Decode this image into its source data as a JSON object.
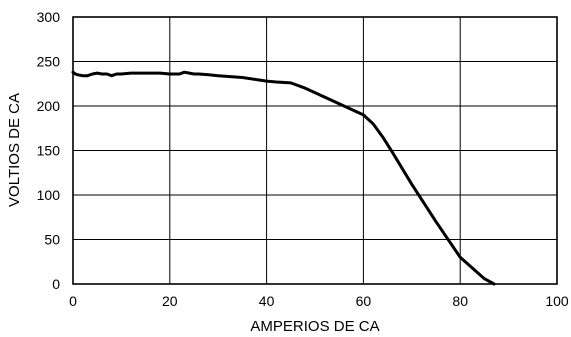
{
  "chart_data": {
    "type": "line",
    "title": "",
    "xlabel": "AMPERIOS DE CA",
    "ylabel": "VOLTIOS DE CA",
    "xlim": [
      0,
      100
    ],
    "ylim": [
      0,
      300
    ],
    "xticks": [
      0,
      20,
      40,
      60,
      80,
      100
    ],
    "yticks": [
      0,
      50,
      100,
      150,
      200,
      250,
      300
    ],
    "xtick_labels": [
      "0",
      "20",
      "40",
      "60",
      "80",
      "100"
    ],
    "ytick_labels": [
      "0",
      "50",
      "100",
      "150",
      "200",
      "250",
      "300"
    ],
    "grid": true,
    "legend": "none",
    "series": [
      {
        "color": "#000000",
        "x": [
          0,
          0.5,
          1,
          2,
          3,
          4,
          5,
          6,
          7,
          8,
          9,
          10,
          12,
          14,
          16,
          18,
          20,
          22,
          23,
          24,
          25,
          26,
          28,
          30,
          35,
          40,
          42,
          45,
          48,
          52,
          56,
          60,
          62,
          64,
          66,
          70,
          75,
          80,
          85,
          87
        ],
        "y": [
          238,
          236,
          235,
          234,
          234,
          236,
          237,
          236,
          236,
          234,
          236,
          236,
          237,
          237,
          237,
          237,
          236,
          236,
          238,
          237,
          236,
          236,
          235,
          234,
          232,
          228,
          227,
          226,
          220,
          210,
          200,
          190,
          180,
          165,
          148,
          112,
          70,
          30,
          6,
          0
        ]
      }
    ]
  }
}
